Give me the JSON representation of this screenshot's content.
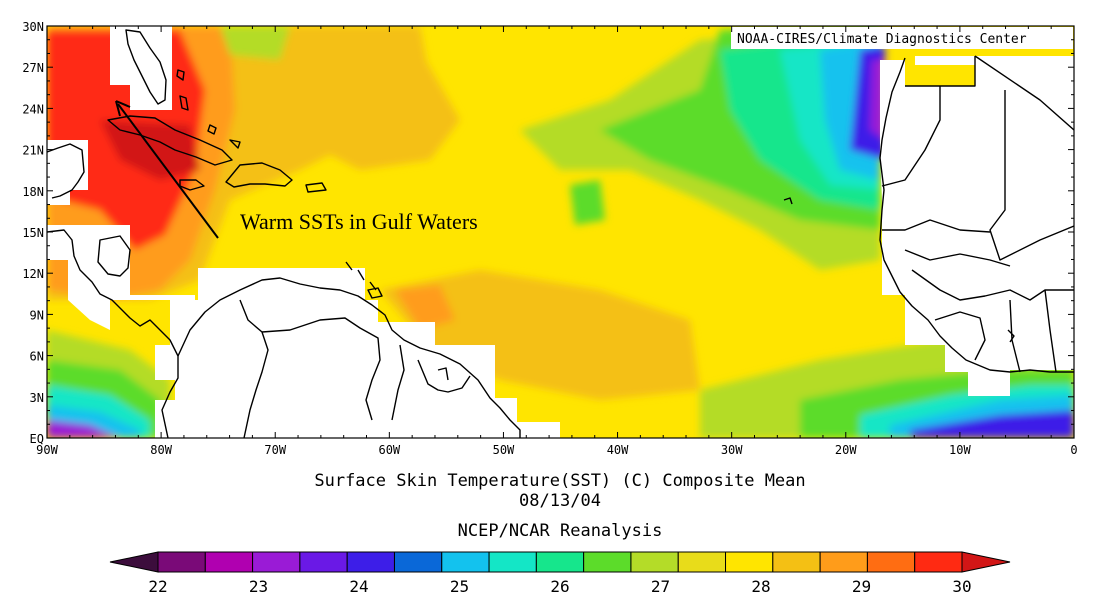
{
  "credit": "NOAA-CIRES/Climate Diagnostics Center",
  "caption": {
    "line1": "Surface Skin Temperature(SST) (C) Composite Mean",
    "line2": "08/13/04",
    "line3": "NCEP/NCAR Reanalysis"
  },
  "annotation": "Warm SSTs in Gulf Waters",
  "lat_labels": [
    "30N",
    "27N",
    "24N",
    "21N",
    "18N",
    "15N",
    "12N",
    "9N",
    "6N",
    "3N",
    "EQ"
  ],
  "lon_labels": [
    "90W",
    "80W",
    "70W",
    "60W",
    "50W",
    "40W",
    "30W",
    "20W",
    "10W",
    "0"
  ],
  "colorbar": {
    "colors": [
      "#3c0d3c",
      "#7a0a78",
      "#b000b0",
      "#9a1bd6",
      "#6a19e6",
      "#3d1ee8",
      "#0a68d8",
      "#13c2ee",
      "#14e6c6",
      "#16e68c",
      "#5cdc2a",
      "#b4dc28",
      "#e8dc1a",
      "#ffe500",
      "#f4c014",
      "#ff9c1a",
      "#ff6d12",
      "#ff2a12",
      "#d21616"
    ],
    "labels": [
      "22",
      "23",
      "24",
      "25",
      "26",
      "27",
      "28",
      "29",
      "30"
    ]
  },
  "colors": {
    "warmest": "#d21616",
    "warm": "#ff2a12",
    "orange": "#ff9c1a",
    "yellow": "#ffe500",
    "green": "#5cdc2a",
    "teal": "#14e6c6",
    "cyan": "#13c2ee",
    "blue": "#3d1ee8",
    "purple": "#9a1bd6"
  }
}
